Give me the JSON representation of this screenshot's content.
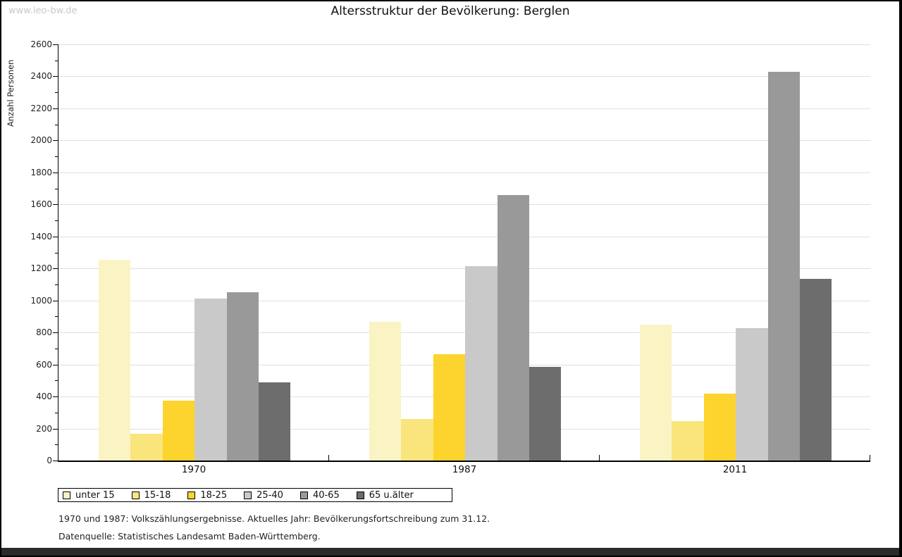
{
  "watermark": "www.leo-bw.de",
  "title": "Altersstruktur der Bevölkerung: Berglen",
  "footnotes": {
    "line1": "1970 und 1987: Volkszählungsergebnisse. Aktuelles Jahr: Bevölkerungsfortschreibung zum 31.12.",
    "line2": "Datenquelle: Statistisches Landesamt Baden-Württemberg."
  },
  "colors": {
    "axis": "#000000",
    "grid": "#e0e0e0",
    "watermark": "#c9c9c9",
    "bottom_bar": "#2a2a2a"
  },
  "chart_data": {
    "type": "bar",
    "title": "Altersstruktur der Bevölkerung: Berglen",
    "xlabel": "",
    "ylabel": "Anzahl Personen",
    "categories": [
      "1970",
      "1987",
      "2011"
    ],
    "series": [
      {
        "name": "unter 15",
        "color": "#faf3c3",
        "values": [
          1255,
          865,
          850
        ]
      },
      {
        "name": "15-18",
        "color": "#fae57d",
        "values": [
          165,
          260,
          245
        ]
      },
      {
        "name": "18-25",
        "color": "#fcd42d",
        "values": [
          375,
          665,
          420
        ]
      },
      {
        "name": "25-40",
        "color": "#c9c9c9",
        "values": [
          1010,
          1215,
          825
        ]
      },
      {
        "name": "40-65",
        "color": "#999999",
        "values": [
          1050,
          1660,
          2430
        ]
      },
      {
        "name": "65 u.älter",
        "color": "#6d6d6d",
        "values": [
          490,
          585,
          1135
        ]
      }
    ],
    "ylim": [
      0,
      2600
    ],
    "ytick_step": 200,
    "minor_tick_step": 100,
    "grid": true,
    "legend_position": "bottom-left"
  }
}
